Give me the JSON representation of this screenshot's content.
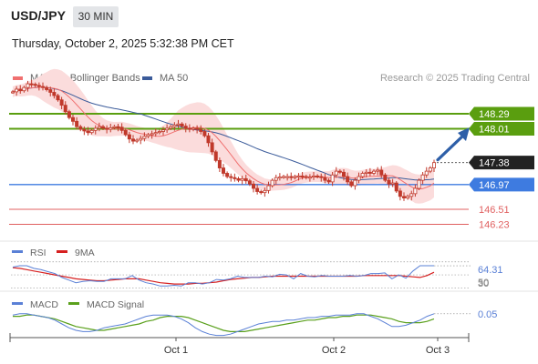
{
  "header": {
    "symbol": "USD/JPY",
    "timeframe": "30 MIN",
    "datetime": "Thursday, October 2, 2025 5:32:38 PM CET"
  },
  "legend": {
    "ma20_label": "MA 20 + Bollinger Bands",
    "ma50_label": "MA 50",
    "credit": "Research © 2025 Trading Central"
  },
  "colors": {
    "green_level": "#5a9e0f",
    "blue_level": "#3e7be0",
    "red_level": "#e06060",
    "ma20": "#f07070",
    "ma50": "#3b5b9a",
    "band_fill": "#fbdcdc",
    "candle": "#c0392b",
    "arrow": "#2e5fa8",
    "current": "#222222",
    "rsi": "#5a80d6",
    "rsi_ma": "#d62020",
    "macd": "#5a80d6",
    "macd_signal": "#5aa01c"
  },
  "chart_data": [
    {
      "type": "candlestick",
      "title": "USD/JPY 30 MIN",
      "ylim": [
        146.0,
        148.8
      ],
      "x_tick_labels": [
        "Oct 1",
        "Oct 2",
        "Oct 3"
      ],
      "levels": [
        {
          "label": "148.29",
          "value": 148.29,
          "kind": "resistance"
        },
        {
          "label": "148.01",
          "value": 148.01,
          "kind": "resistance"
        },
        {
          "label": "147.38",
          "value": 147.38,
          "kind": "current"
        },
        {
          "label": "146.97",
          "value": 146.97,
          "kind": "pivot"
        },
        {
          "label": "146.51",
          "value": 146.51,
          "kind": "support"
        },
        {
          "label": "146.23",
          "value": 146.23,
          "kind": "support"
        }
      ],
      "series": [
        {
          "name": "MA 20 + Bollinger Bands",
          "style": "ma20"
        },
        {
          "name": "MA 50",
          "style": "ma50"
        }
      ],
      "close": [
        148.7,
        148.75,
        148.72,
        148.78,
        148.85,
        148.84,
        148.82,
        148.8,
        148.78,
        148.74,
        148.69,
        148.63,
        148.55,
        148.45,
        148.33,
        148.22,
        148.15,
        148.05,
        148.0,
        147.97,
        147.94,
        147.98,
        148.02,
        148.05,
        148.02,
        148.0,
        148.03,
        148.05,
        148.04,
        147.98,
        147.9,
        147.82,
        147.78,
        147.8,
        147.83,
        147.87,
        147.9,
        147.92,
        147.94,
        147.96,
        147.99,
        148.02,
        148.05,
        148.08,
        148.1,
        148.06,
        148.02,
        148.0,
        148.02,
        148.0,
        147.96,
        147.88,
        147.75,
        147.58,
        147.42,
        147.28,
        147.18,
        147.12,
        147.1,
        147.08,
        147.05,
        147.08,
        147.04,
        146.98,
        146.9,
        146.84,
        146.82,
        146.86,
        146.95,
        147.05,
        147.1,
        147.11,
        147.12,
        147.12,
        147.1,
        147.12,
        147.13,
        147.12,
        147.1,
        147.11,
        147.13,
        147.12,
        147.1,
        147.05,
        147.02,
        147.15,
        147.22,
        147.2,
        147.12,
        147.02,
        146.95,
        147.05,
        147.12,
        147.18,
        147.2,
        147.18,
        147.22,
        147.24,
        147.15,
        147.05,
        146.98,
        147.0,
        146.85,
        146.75,
        146.72,
        146.75,
        146.8,
        146.9,
        147.05,
        147.15,
        147.22,
        147.28,
        147.38
      ],
      "bb_width": [
        0.1,
        0.1,
        0.11,
        0.12,
        0.13,
        0.14,
        0.16,
        0.2,
        0.25,
        0.29,
        0.33,
        0.36,
        0.37,
        0.38,
        0.38,
        0.38,
        0.38,
        0.37,
        0.36,
        0.34,
        0.31,
        0.28,
        0.24,
        0.2,
        0.17,
        0.15,
        0.14,
        0.13,
        0.13,
        0.13,
        0.12,
        0.12,
        0.12,
        0.12,
        0.12,
        0.12,
        0.12,
        0.13,
        0.14,
        0.16,
        0.19,
        0.23,
        0.27,
        0.32,
        0.37,
        0.4,
        0.43,
        0.45,
        0.46,
        0.47,
        0.47,
        0.46,
        0.44,
        0.42,
        0.39,
        0.36,
        0.32,
        0.28,
        0.25,
        0.22,
        0.19,
        0.17,
        0.15,
        0.14,
        0.13,
        0.12,
        0.12,
        0.11,
        0.11,
        0.1,
        0.1,
        0.1,
        0.1,
        0.1,
        0.1,
        0.1,
        0.1,
        0.1,
        0.1,
        0.1,
        0.1,
        0.1,
        0.1,
        0.11,
        0.12,
        0.14,
        0.15,
        0.16,
        0.16,
        0.16,
        0.15,
        0.14,
        0.14,
        0.14,
        0.14,
        0.14,
        0.14,
        0.14,
        0.15,
        0.16,
        0.18,
        0.2,
        0.22,
        0.24,
        0.25,
        0.26,
        0.26,
        0.27,
        0.27,
        0.27,
        0.27,
        0.27,
        0.27
      ]
    },
    {
      "type": "line",
      "series": [
        {
          "name": "RSI",
          "values": [
            62,
            64,
            64,
            60,
            58,
            55,
            52,
            46,
            42,
            38,
            40,
            41,
            40,
            40,
            44,
            44,
            44,
            49,
            42,
            38,
            36,
            33,
            33,
            34,
            33,
            38,
            38,
            36,
            38,
            43,
            42,
            44,
            48,
            46,
            46,
            46,
            48,
            47,
            51,
            50,
            44,
            52,
            48,
            47,
            49,
            48,
            48,
            48,
            49,
            48,
            49,
            52,
            52,
            53,
            44,
            50,
            45,
            56,
            64,
            64,
            64
          ]
        },
        {
          "name": "9MA",
          "values": [
            61,
            60,
            58,
            56,
            54,
            52,
            50,
            48,
            46,
            44,
            43,
            42,
            41,
            41,
            42,
            43,
            44,
            44,
            44,
            42,
            40,
            38,
            37,
            36,
            36,
            36,
            37,
            37,
            38,
            39,
            41,
            43,
            44,
            45,
            46,
            46,
            47,
            48,
            48,
            48,
            48,
            48,
            48,
            48,
            48,
            48,
            48,
            48,
            48,
            48,
            49,
            49,
            49,
            49,
            49,
            49,
            48,
            47,
            46,
            49,
            54
          ]
        }
      ],
      "y_tick_labels": [
        "64.31",
        "50",
        "30"
      ],
      "ylim": [
        25,
        78
      ]
    },
    {
      "type": "line",
      "series": [
        {
          "name": "MACD",
          "values": [
            0.04,
            0.05,
            0.05,
            0.04,
            0.03,
            0.02,
            0.0,
            -0.03,
            -0.06,
            -0.08,
            -0.09,
            -0.09,
            -0.08,
            -0.06,
            -0.05,
            -0.04,
            -0.03,
            -0.01,
            0.01,
            0.03,
            0.04,
            0.04,
            0.04,
            0.03,
            0.01,
            -0.02,
            -0.06,
            -0.09,
            -0.11,
            -0.12,
            -0.12,
            -0.11,
            -0.09,
            -0.07,
            -0.05,
            -0.03,
            -0.02,
            -0.01,
            -0.01,
            0.0,
            0.0,
            0.01,
            0.02,
            0.02,
            0.03,
            0.03,
            0.04,
            0.04,
            0.04,
            0.05,
            0.05,
            0.03,
            0.01,
            -0.02,
            -0.05,
            -0.05,
            -0.04,
            -0.02,
            0.0,
            0.03,
            0.05
          ]
        },
        {
          "name": "MACD Signal",
          "values": [
            0.03,
            0.03,
            0.04,
            0.04,
            0.03,
            0.02,
            0.01,
            -0.01,
            -0.03,
            -0.05,
            -0.06,
            -0.07,
            -0.08,
            -0.08,
            -0.07,
            -0.06,
            -0.05,
            -0.04,
            -0.03,
            -0.01,
            0.0,
            0.02,
            0.03,
            0.03,
            0.03,
            0.02,
            0.0,
            -0.02,
            -0.04,
            -0.06,
            -0.08,
            -0.09,
            -0.09,
            -0.09,
            -0.08,
            -0.07,
            -0.06,
            -0.05,
            -0.04,
            -0.03,
            -0.02,
            -0.01,
            0.0,
            0.0,
            0.01,
            0.02,
            0.02,
            0.03,
            0.03,
            0.04,
            0.04,
            0.04,
            0.03,
            0.02,
            0.01,
            -0.01,
            -0.02,
            -0.02,
            -0.02,
            -0.01,
            0.01
          ]
        }
      ],
      "y_tick_labels": [
        "0.05"
      ],
      "ylim": [
        -0.13,
        0.07
      ]
    }
  ]
}
